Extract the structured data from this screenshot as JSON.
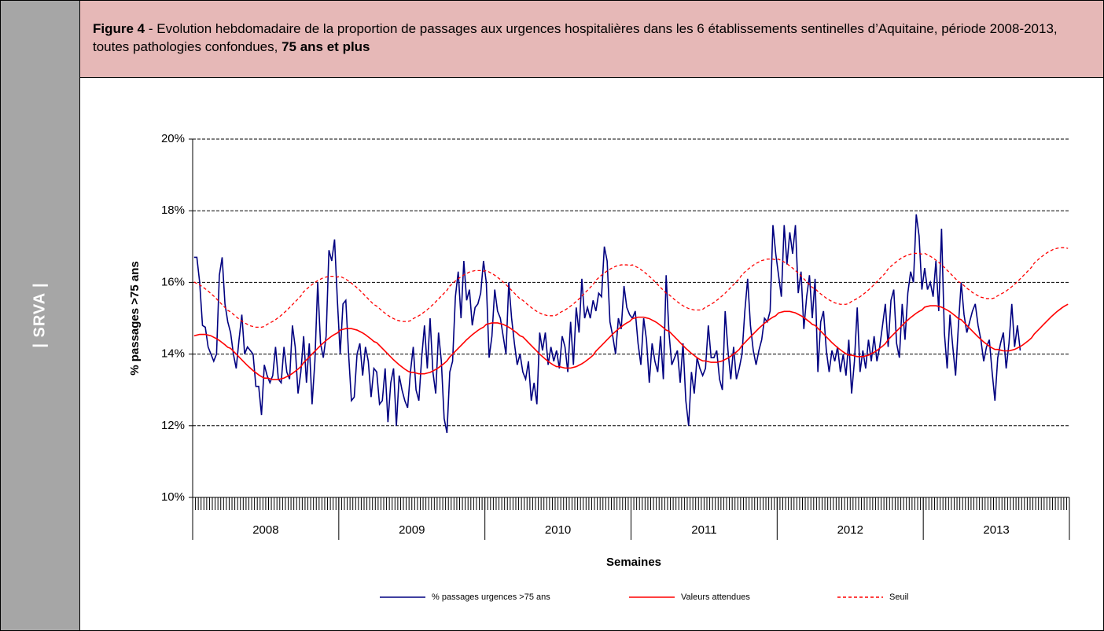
{
  "header": {
    "figure_label": "Figure 4",
    "text": " -  Evolution hebdomadaire de la proportion de passages aux urgences hospitalières dans les 6 établissements sentinelles d’Aquitaine, période 2008-2013, toutes pathologies confondues, ",
    "emphasis": "75 ans et plus"
  },
  "sidebar": "| SRVA |",
  "chart_data": {
    "type": "line",
    "x_label": "Semaines",
    "y_label": "% passages >75 ans",
    "groups": [
      "2008",
      "2009",
      "2010",
      "2011",
      "2012",
      "2013"
    ],
    "ylim": [
      10,
      20
    ],
    "yticks": [
      {
        "value": 10,
        "label": "10%"
      },
      {
        "value": 12,
        "label": "12%"
      },
      {
        "value": 14,
        "label": "14%"
      },
      {
        "value": 16,
        "label": "16%"
      },
      {
        "value": 18,
        "label": "18%"
      },
      {
        "value": 20,
        "label": "20%"
      }
    ],
    "grid": true,
    "legend": "bottom",
    "series": [
      {
        "name": "% passages urgences >75 ans",
        "color": "#000080",
        "dash": false,
        "values": [
          16.7,
          16.7,
          16.0,
          14.8,
          14.75,
          14.2,
          14.0,
          13.8,
          14.0,
          16.2,
          16.7,
          15.4,
          14.9,
          14.6,
          14.0,
          13.6,
          14.4,
          15.1,
          14.0,
          14.2,
          14.1,
          14.0,
          13.1,
          13.1,
          12.3,
          13.7,
          13.4,
          13.2,
          13.4,
          14.2,
          13.3,
          13.2,
          14.2,
          13.5,
          13.3,
          14.8,
          14.2,
          12.9,
          13.5,
          14.5,
          13.2,
          14.3,
          12.6,
          13.8,
          16.0,
          14.3,
          13.9,
          14.5,
          16.9,
          16.6,
          17.2,
          15.5,
          14.0,
          15.4,
          15.5,
          14.0,
          12.7,
          12.8,
          14.0,
          14.3,
          13.4,
          14.2,
          13.8,
          12.8,
          13.6,
          13.5,
          12.6,
          12.7,
          13.6,
          12.1,
          13.2,
          13.6,
          12.0,
          13.4,
          13.0,
          12.7,
          12.5,
          13.5,
          14.2,
          13.0,
          12.7,
          13.9,
          14.8,
          13.6,
          15.0,
          13.5,
          12.9,
          14.6,
          13.8,
          12.2,
          11.8,
          13.5,
          13.8,
          15.6,
          16.3,
          15.0,
          16.6,
          15.5,
          15.8,
          14.8,
          15.3,
          15.4,
          15.7,
          16.6,
          16.0,
          13.9,
          14.5,
          15.8,
          15.2,
          15.0,
          14.5,
          14.0,
          16.0,
          15.0,
          14.3,
          13.7,
          14.0,
          13.5,
          13.3,
          13.8,
          12.7,
          13.2,
          12.6,
          14.6,
          14.1,
          14.6,
          13.7,
          14.2,
          13.8,
          14.1,
          13.6,
          14.5,
          14.2,
          13.5,
          14.9,
          13.7,
          15.3,
          14.6,
          16.1,
          15.0,
          15.3,
          15.0,
          15.5,
          15.2,
          15.7,
          15.6,
          17.0,
          16.6,
          14.9,
          14.5,
          14.0,
          15.0,
          14.7,
          15.9,
          15.3,
          15.1,
          15.0,
          15.2,
          14.3,
          13.7,
          15.0,
          14.4,
          13.2,
          14.3,
          13.8,
          13.5,
          14.5,
          13.3,
          16.2,
          14.6,
          13.7,
          13.9,
          14.1,
          13.2,
          14.3,
          12.7,
          12.0,
          13.5,
          12.9,
          13.9,
          13.6,
          13.4,
          13.6,
          14.8,
          13.9,
          13.9,
          14.1,
          13.3,
          13.0,
          15.2,
          14.1,
          13.3,
          14.2,
          13.3,
          13.6,
          14.0,
          15.2,
          16.1,
          14.8,
          14.1,
          13.7,
          14.1,
          14.4,
          15.0,
          14.9,
          15.2,
          17.6,
          16.8,
          16.2,
          15.6,
          17.6,
          16.5,
          17.4,
          16.8,
          17.6,
          15.7,
          16.3,
          14.7,
          15.6,
          16.2,
          15.0,
          16.1,
          13.5,
          14.9,
          15.2,
          14.1,
          13.5,
          14.1,
          13.8,
          14.2,
          13.5,
          14.0,
          13.4,
          14.4,
          12.9,
          13.8,
          15.3,
          13.5,
          14.1,
          13.6,
          14.4,
          13.8,
          14.5,
          13.8,
          14.2,
          14.8,
          15.4,
          14.2,
          15.5,
          15.8,
          14.3,
          13.9,
          15.4,
          14.4,
          15.7,
          16.3,
          16.0,
          17.9,
          17.3,
          15.8,
          16.4,
          15.8,
          16.0,
          15.6,
          16.6,
          15.2,
          17.5,
          14.6,
          13.6,
          15.1,
          14.2,
          13.4,
          14.8,
          16.0,
          15.1,
          14.6,
          14.9,
          15.2,
          15.4,
          14.8,
          14.4,
          13.8,
          14.2,
          14.4,
          13.5,
          12.7,
          13.9,
          14.3,
          14.6,
          13.6,
          14.3,
          15.4,
          14.2,
          14.8,
          14.1,
          null,
          null,
          null,
          null,
          null,
          null,
          null,
          null,
          null,
          null,
          null,
          null,
          null,
          null,
          null,
          null,
          null
        ]
      },
      {
        "name": "Valeurs attendues",
        "color": "#ff0000",
        "dash": false,
        "values": [
          14.51,
          14.53,
          14.55,
          14.55,
          14.55,
          14.53,
          14.51,
          14.47,
          14.43,
          14.38,
          14.32,
          14.26,
          14.19,
          14.16,
          14.08,
          14.0,
          13.92,
          13.84,
          13.76,
          13.68,
          13.61,
          13.54,
          13.48,
          13.42,
          13.37,
          13.33,
          13.33,
          13.31,
          13.29,
          13.29,
          13.29,
          13.31,
          13.33,
          13.37,
          13.41,
          13.46,
          13.52,
          13.58,
          13.65,
          13.76,
          13.84,
          13.92,
          14.0,
          14.08,
          14.16,
          14.24,
          14.31,
          14.38,
          14.44,
          14.5,
          14.55,
          14.59,
          14.67,
          14.69,
          14.71,
          14.71,
          14.71,
          14.69,
          14.67,
          14.63,
          14.59,
          14.54,
          14.48,
          14.42,
          14.35,
          14.32,
          14.24,
          14.16,
          14.08,
          14.0,
          13.92,
          13.84,
          13.77,
          13.7,
          13.64,
          13.58,
          13.53,
          13.49,
          13.49,
          13.47,
          13.45,
          13.45,
          13.45,
          13.47,
          13.49,
          13.53,
          13.57,
          13.62,
          13.68,
          13.74,
          13.81,
          13.92,
          14.0,
          14.08,
          14.16,
          14.24,
          14.32,
          14.4,
          14.47,
          14.54,
          14.6,
          14.66,
          14.71,
          14.75,
          14.83,
          14.85,
          14.87,
          14.87,
          14.87,
          14.85,
          14.83,
          14.79,
          14.75,
          14.7,
          14.64,
          14.58,
          14.51,
          14.48,
          14.4,
          14.32,
          14.24,
          14.16,
          14.08,
          14.0,
          13.93,
          13.86,
          13.8,
          13.74,
          13.69,
          13.65,
          13.65,
          13.63,
          13.61,
          13.61,
          13.61,
          13.63,
          13.65,
          13.69,
          13.73,
          13.78,
          13.84,
          13.9,
          13.97,
          14.08,
          14.16,
          14.24,
          14.32,
          14.4,
          14.48,
          14.56,
          14.63,
          14.7,
          14.76,
          14.82,
          14.87,
          14.91,
          14.99,
          15.01,
          15.03,
          15.03,
          15.03,
          15.01,
          14.99,
          14.95,
          14.91,
          14.86,
          14.8,
          14.74,
          14.67,
          14.64,
          14.56,
          14.48,
          14.4,
          14.32,
          14.24,
          14.16,
          14.09,
          14.02,
          13.96,
          13.9,
          13.85,
          13.81,
          13.81,
          13.79,
          13.77,
          13.77,
          13.77,
          13.79,
          13.81,
          13.85,
          13.89,
          13.94,
          14.0,
          14.06,
          14.13,
          14.24,
          14.32,
          14.4,
          14.48,
          14.56,
          14.64,
          14.72,
          14.79,
          14.86,
          14.92,
          14.98,
          15.03,
          15.07,
          15.15,
          15.17,
          15.19,
          15.19,
          15.19,
          15.17,
          15.15,
          15.11,
          15.07,
          15.02,
          14.96,
          14.9,
          14.83,
          14.8,
          14.72,
          14.64,
          14.56,
          14.48,
          14.4,
          14.32,
          14.25,
          14.18,
          14.12,
          14.06,
          14.01,
          13.97,
          13.97,
          13.95,
          13.93,
          13.93,
          13.93,
          13.95,
          13.97,
          14.01,
          14.05,
          14.1,
          14.16,
          14.22,
          14.29,
          14.4,
          14.48,
          14.56,
          14.64,
          14.72,
          14.8,
          14.88,
          14.95,
          15.02,
          15.08,
          15.14,
          15.19,
          15.23,
          15.31,
          15.33,
          15.35,
          15.35,
          15.35,
          15.33,
          15.31,
          15.27,
          15.23,
          15.18,
          15.12,
          15.06,
          14.99,
          14.96,
          14.88,
          14.8,
          14.72,
          14.64,
          14.56,
          14.48,
          14.41,
          14.34,
          14.28,
          14.22,
          14.17,
          14.13,
          14.13,
          14.11,
          14.09,
          14.09,
          14.09,
          14.11,
          14.13,
          14.17,
          14.21,
          14.26,
          14.32,
          14.38,
          14.45,
          14.56,
          14.64,
          14.72,
          14.8,
          14.88,
          14.96,
          15.04,
          15.11,
          15.18,
          15.24,
          15.3,
          15.35,
          15.39
        ]
      },
      {
        "name": "Seuil",
        "color": "#ff0000",
        "dash": true,
        "values": [
          16.01,
          15.97,
          15.93,
          15.88,
          15.82,
          15.76,
          15.69,
          15.62,
          15.54,
          15.46,
          15.38,
          15.3,
          15.22,
          15.18,
          15.11,
          15.04,
          14.98,
          14.92,
          14.87,
          14.83,
          14.79,
          14.77,
          14.75,
          14.75,
          14.75,
          14.77,
          14.83,
          14.87,
          14.91,
          14.96,
          15.02,
          15.08,
          15.15,
          15.22,
          15.3,
          15.38,
          15.46,
          15.54,
          15.62,
          15.74,
          15.81,
          15.88,
          15.94,
          16.0,
          16.05,
          16.09,
          16.13,
          16.15,
          16.17,
          16.17,
          16.17,
          16.15,
          16.17,
          16.13,
          16.09,
          16.04,
          15.98,
          15.92,
          15.85,
          15.78,
          15.7,
          15.62,
          15.54,
          15.46,
          15.38,
          15.34,
          15.27,
          15.2,
          15.14,
          15.08,
          15.03,
          14.99,
          14.95,
          14.93,
          14.91,
          14.91,
          14.91,
          14.93,
          14.99,
          15.03,
          15.07,
          15.12,
          15.18,
          15.24,
          15.31,
          15.38,
          15.46,
          15.54,
          15.62,
          15.7,
          15.78,
          15.9,
          15.97,
          16.04,
          16.1,
          16.16,
          16.21,
          16.25,
          16.29,
          16.31,
          16.33,
          16.33,
          16.33,
          16.31,
          16.33,
          16.29,
          16.25,
          16.2,
          16.14,
          16.08,
          16.01,
          15.94,
          15.86,
          15.78,
          15.7,
          15.62,
          15.54,
          15.5,
          15.43,
          15.36,
          15.3,
          15.24,
          15.19,
          15.15,
          15.11,
          15.09,
          15.07,
          15.07,
          15.07,
          15.09,
          15.15,
          15.19,
          15.23,
          15.28,
          15.34,
          15.4,
          15.47,
          15.54,
          15.62,
          15.7,
          15.78,
          15.86,
          15.94,
          16.06,
          16.13,
          16.2,
          16.26,
          16.32,
          16.37,
          16.41,
          16.45,
          16.47,
          16.49,
          16.49,
          16.49,
          16.47,
          16.49,
          16.45,
          16.41,
          16.36,
          16.3,
          16.24,
          16.17,
          16.1,
          16.02,
          15.94,
          15.86,
          15.78,
          15.7,
          15.66,
          15.59,
          15.52,
          15.46,
          15.4,
          15.35,
          15.31,
          15.27,
          15.25,
          15.23,
          15.23,
          15.23,
          15.25,
          15.31,
          15.35,
          15.39,
          15.44,
          15.5,
          15.56,
          15.63,
          15.7,
          15.78,
          15.86,
          15.94,
          16.02,
          16.1,
          16.22,
          16.29,
          16.36,
          16.42,
          16.48,
          16.53,
          16.57,
          16.61,
          16.63,
          16.65,
          16.65,
          16.65,
          16.63,
          16.65,
          16.61,
          16.57,
          16.52,
          16.46,
          16.4,
          16.33,
          16.26,
          16.18,
          16.1,
          16.02,
          15.94,
          15.86,
          15.82,
          15.75,
          15.68,
          15.62,
          15.56,
          15.51,
          15.47,
          15.43,
          15.41,
          15.39,
          15.39,
          15.39,
          15.41,
          15.47,
          15.51,
          15.55,
          15.6,
          15.66,
          15.72,
          15.79,
          15.86,
          15.94,
          16.02,
          16.1,
          16.18,
          16.26,
          16.38,
          16.45,
          16.52,
          16.58,
          16.64,
          16.69,
          16.73,
          16.77,
          16.79,
          16.81,
          16.81,
          16.81,
          16.79,
          16.81,
          16.77,
          16.73,
          16.68,
          16.62,
          16.56,
          16.49,
          16.42,
          16.34,
          16.26,
          16.18,
          16.1,
          16.02,
          15.98,
          15.91,
          15.84,
          15.78,
          15.72,
          15.67,
          15.63,
          15.59,
          15.57,
          15.55,
          15.55,
          15.55,
          15.57,
          15.63,
          15.67,
          15.71,
          15.76,
          15.82,
          15.88,
          15.95,
          16.02,
          16.1,
          16.18,
          16.26,
          16.34,
          16.42,
          16.54,
          16.61,
          16.68,
          16.74,
          16.8,
          16.85,
          16.89,
          16.93,
          16.95,
          16.97,
          16.97,
          16.97,
          16.95
        ]
      }
    ]
  }
}
